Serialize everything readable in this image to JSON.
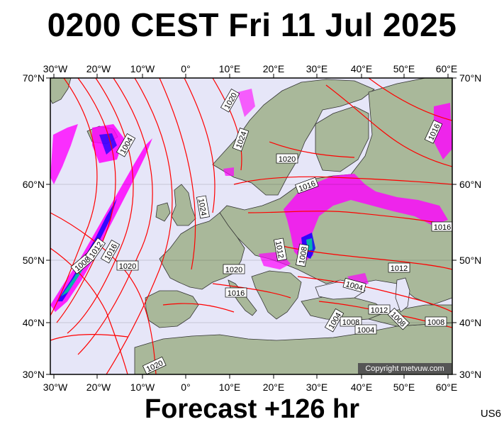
{
  "title": "0200 CEST Fri 11 Jul 2025",
  "footer": "Forecast +126 hr",
  "map_code": "US6",
  "copyright": "Copyright metvuw.com",
  "lon_labels": [
    "30°W",
    "20°W",
    "10°W",
    "0°",
    "10°E",
    "20°E",
    "30°E",
    "40°E",
    "50°E",
    "60°E"
  ],
  "lat_labels": [
    "70°N",
    "60°N",
    "50°N",
    "40°N",
    "30°N"
  ],
  "colors": {
    "land": "#a9b89a",
    "sea": "#e6e6f8",
    "isobar": "#ff0000",
    "precip_heavy": "#ff00ff",
    "precip_core": "#0000ff",
    "precip_extreme": "#00c8a0"
  },
  "isobar_labels": [
    {
      "text": "1020"
    },
    {
      "text": "1024"
    },
    {
      "text": "1004"
    },
    {
      "text": "1020"
    },
    {
      "text": "1016"
    },
    {
      "text": "1024"
    },
    {
      "text": "1016"
    },
    {
      "text": "1012"
    },
    {
      "text": "1008"
    },
    {
      "text": "1008"
    },
    {
      "text": "1012"
    },
    {
      "text": "1016"
    },
    {
      "text": "1020"
    },
    {
      "text": "1020"
    },
    {
      "text": "1012"
    },
    {
      "text": "1016"
    },
    {
      "text": "1016"
    },
    {
      "text": "1004"
    },
    {
      "text": "1004"
    },
    {
      "text": "1008"
    },
    {
      "text": "1004"
    },
    {
      "text": "1012"
    },
    {
      "text": "1008"
    },
    {
      "text": "1008"
    },
    {
      "text": "1020"
    }
  ]
}
